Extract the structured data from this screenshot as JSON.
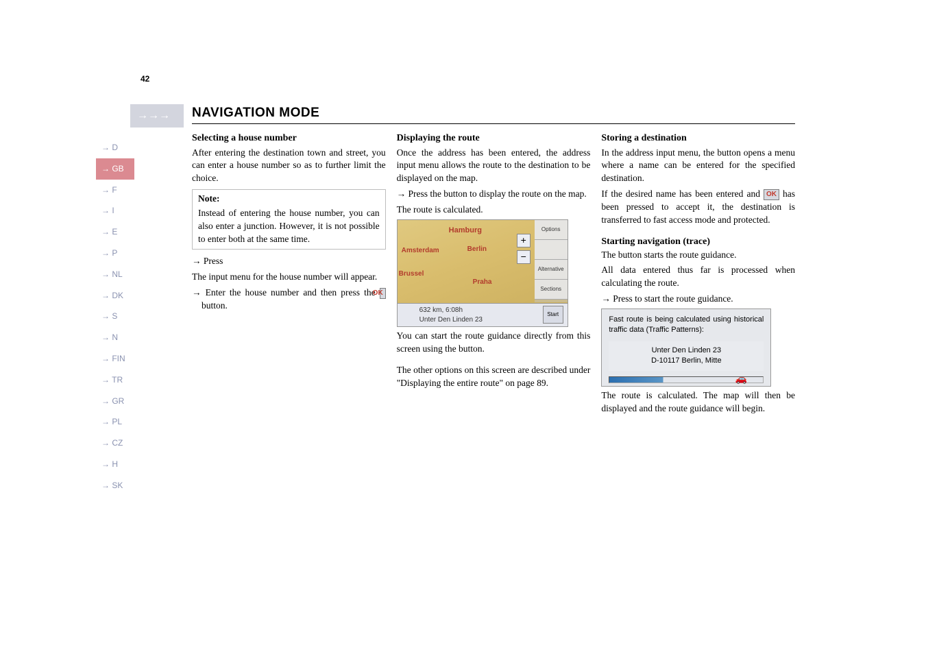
{
  "header": {
    "arrows": "→→→",
    "title": "NAVIGATION MODE"
  },
  "sidebar": {
    "items": [
      {
        "label": "→ D",
        "active": false
      },
      {
        "label": "→ GB",
        "active": true
      },
      {
        "label": "→ F",
        "active": false
      },
      {
        "label": "→ I",
        "active": false
      },
      {
        "label": "→ E",
        "active": false
      },
      {
        "label": "→ P",
        "active": false
      },
      {
        "label": "→ NL",
        "active": false
      },
      {
        "label": "→ DK",
        "active": false
      },
      {
        "label": "→ S",
        "active": false
      },
      {
        "label": "→ N",
        "active": false
      },
      {
        "label": "→ FIN",
        "active": false
      },
      {
        "label": "→ TR",
        "active": false
      },
      {
        "label": "→ GR",
        "active": false
      },
      {
        "label": "→ PL",
        "active": false
      },
      {
        "label": "→ CZ",
        "active": false
      },
      {
        "label": "→ H",
        "active": false
      },
      {
        "label": "→ SK",
        "active": false
      }
    ]
  },
  "col1": {
    "h3": "Selecting a house number",
    "p1": "After entering the destination town and street, you can enter a house number so as to further limit the choice.",
    "note_title": "Note:",
    "note_body": "Instead of entering the house number, you can also enter a junction. However, it is not possible to enter both at the same time.",
    "li1": "→ Press",
    "p2": "The input menu for the house number will appear.",
    "li2_a": "→ Enter the house number and then press the ",
    "li2_b": " button.",
    "ok": "OK"
  },
  "col2": {
    "h3": "Displaying the route",
    "p1": "Once the address has been entered, the address input menu allows the route to the destination to be displayed on the map.",
    "li1": "→ Press the                    button to display the route on the map.",
    "p2": "The route is calculated.",
    "map": {
      "cities": [
        "Hamburg",
        "Amsterdam",
        "Berlin",
        "Brussel",
        "Praha"
      ],
      "right_labels": [
        "Options",
        "",
        "Alternative",
        "Sections"
      ],
      "bottom_dist": "632 km, 6:08h",
      "bottom_addr": "Unter Den Linden 23",
      "start": "Start"
    },
    "p3": "You can start the route guidance directly from this screen using the         button.",
    "p4": "The other options on this screen are described under \"Displaying the entire route\" on page 89."
  },
  "col3": {
    "h3": "Storing a destination",
    "p1a": "In the address input menu, the         button opens a menu where a name can be entered for the specified destination.",
    "p1b_a": "If the desired name has been entered and ",
    "p1b_b": " has been pressed to accept it, the destination is transferred to fast access mode and protected.",
    "ok": "OK",
    "h4": "Starting navigation (trace)",
    "p2": "The          button starts the route guidance.",
    "p3": "All data entered thus far is processed when calculating the route.",
    "li1": "→ Press          to start the route guidance.",
    "calc": {
      "line1": "Fast route is being calculated using historical traffic data (Traffic Patterns):",
      "addr1": "Unter Den Linden 23",
      "addr2": "D-10117 Berlin, Mitte"
    },
    "p4": "The route is calculated. The map will then be displayed and the route guidance will begin."
  },
  "page_number": "42"
}
